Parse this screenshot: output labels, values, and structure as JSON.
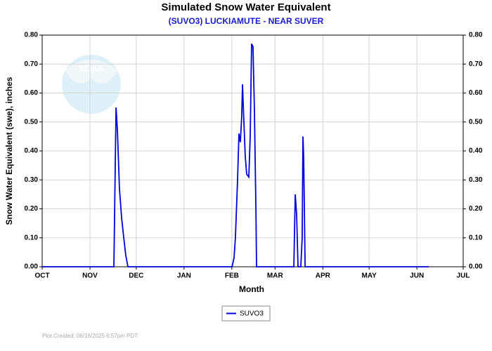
{
  "chart_data": {
    "type": "line",
    "title": "Simulated Snow Water Equivalent",
    "subtitle": "(SUVO3) LUCKIAMUTE - NEAR SUVER",
    "x_label": "Month",
    "y_label": "Snow Water Equivalent (swe),  inches",
    "watermark": "NOAA",
    "footer": "Plot Created: 06/16/2025 6:57pm PDT",
    "grid": true,
    "legend": "bottom",
    "xlim": [
      0,
      273
    ],
    "xticks": [
      {
        "value": 0,
        "label": "OCT"
      },
      {
        "value": 31,
        "label": "NOV"
      },
      {
        "value": 61,
        "label": "DEC"
      },
      {
        "value": 92,
        "label": "JAN"
      },
      {
        "value": 123,
        "label": "FEB"
      },
      {
        "value": 151,
        "label": "MAR"
      },
      {
        "value": 182,
        "label": "APR"
      },
      {
        "value": 212,
        "label": "MAY"
      },
      {
        "value": 243,
        "label": "JUN"
      },
      {
        "value": 273,
        "label": "JUL"
      }
    ],
    "ylim": [
      0,
      0.8
    ],
    "yticks": [
      {
        "value": 0,
        "label": "0.00"
      },
      {
        "value": 0.1,
        "label": "0.10"
      },
      {
        "value": 0.2,
        "label": "0.20"
      },
      {
        "value": 0.3,
        "label": "0.30"
      },
      {
        "value": 0.4,
        "label": "0.40"
      },
      {
        "value": 0.5,
        "label": "0.50"
      },
      {
        "value": 0.6,
        "label": "0.60"
      },
      {
        "value": 0.7,
        "label": "0.70"
      },
      {
        "value": 0.8,
        "label": "0.80"
      }
    ],
    "y2lim": [
      0,
      0.8
    ],
    "y2ticks": [
      {
        "value": 0,
        "label": "0.00"
      },
      {
        "value": 0.1,
        "label": "0.10"
      },
      {
        "value": 0.2,
        "label": "0.20"
      },
      {
        "value": 0.3,
        "label": "0.30"
      },
      {
        "value": 0.4,
        "label": "0.40"
      },
      {
        "value": 0.5,
        "label": "0.50"
      },
      {
        "value": 0.6,
        "label": "0.60"
      },
      {
        "value": 0.7,
        "label": "0.70"
      },
      {
        "value": 0.8,
        "label": "0.80"
      }
    ],
    "x": [
      0,
      46.5,
      47.9,
      48.8,
      50.1,
      51.5,
      52.9,
      54.2,
      55.6,
      123.1,
      124.4,
      125.3,
      126.7,
      127.6,
      128.5,
      129.4,
      129.9,
      130.8,
      131.7,
      132.6,
      134.0,
      134.9,
      135.8,
      136.7,
      137.6,
      138.6,
      139.0,
      163.2,
      164.1,
      165.0,
      165.9,
      167.7,
      168.6,
      169.1,
      169.6,
      170.5,
      250.7
    ],
    "series": [
      {
        "name": "SUVO3",
        "color": "#0000dd",
        "values": [
          0,
          0,
          0.55,
          0.47,
          0.27,
          0.17,
          0.1,
          0.04,
          0,
          0,
          0.03,
          0.1,
          0.3,
          0.46,
          0.43,
          0.52,
          0.63,
          0.5,
          0.38,
          0.32,
          0.31,
          0.45,
          0.77,
          0.76,
          0.55,
          0.2,
          0,
          0,
          0.25,
          0.18,
          0,
          0,
          0.1,
          0.45,
          0.37,
          0,
          0
        ]
      }
    ]
  }
}
